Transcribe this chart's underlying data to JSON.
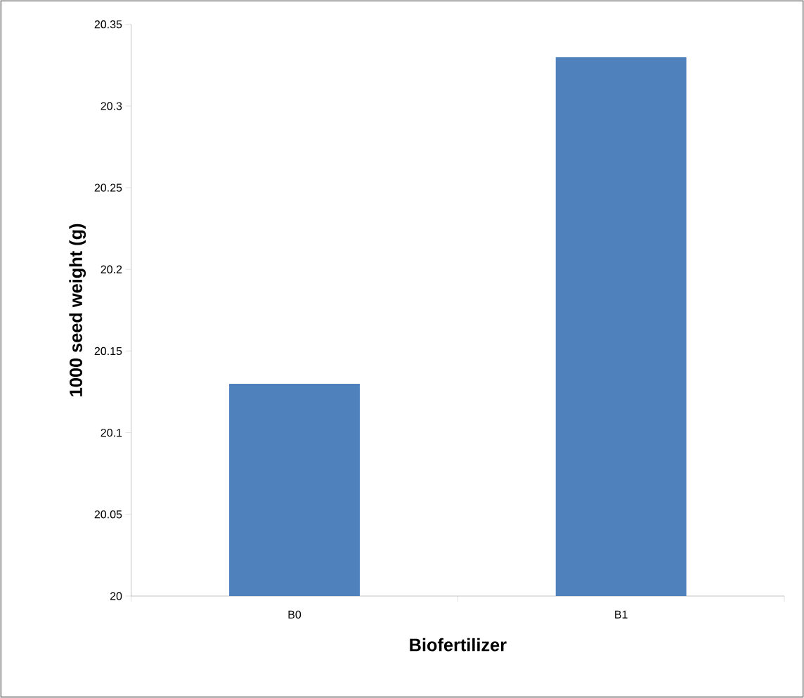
{
  "chart_data": {
    "type": "bar",
    "xlabel": "Biofertilizer",
    "ylabel": "1000 seed weight (g)",
    "categories": [
      "B0",
      "B1"
    ],
    "values": [
      20.13,
      20.33
    ],
    "color": "#4f81bd",
    "ylim": [
      20,
      20.35
    ],
    "yticks": [
      20,
      20.05,
      20.1,
      20.15,
      20.2,
      20.25,
      20.3,
      20.35
    ]
  }
}
